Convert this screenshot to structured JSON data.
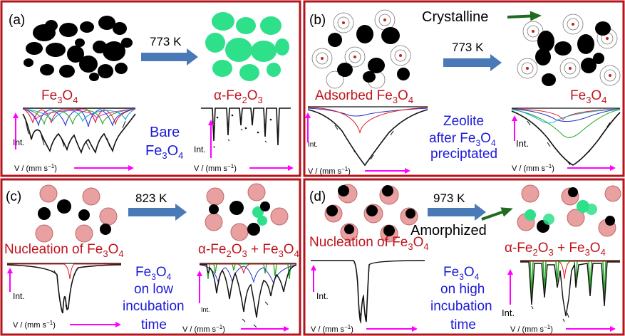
{
  "colors": {
    "panel_border": "#b3141c",
    "heading_red": "#c0141c",
    "blue_text": "#1a1ad9",
    "magenta_axis": "#ff00ff",
    "arrow_blue": "#4a79b8",
    "arrow_green": "#1f6b1f",
    "hematite_green": "#2ee08a",
    "zeolite_pink": "#e8a0a0",
    "spectrum_black": "#111111"
  },
  "panels": {
    "a": {
      "letter": "(a)",
      "temperature": "773 K",
      "left_label": {
        "base": "Fe",
        "sub1": "3",
        "mid": "O",
        "sub2": "4"
      },
      "right_label": {
        "prefix": "α-Fe",
        "sub1": "2",
        "mid": "O",
        "sub2": "3"
      },
      "note": {
        "line1": "Bare",
        "line2_base": "Fe",
        "line2_sub1": "3",
        "line2_mid": "O",
        "line2_sub2": "4"
      },
      "int_label": "Int.",
      "axis_label": {
        "text": "V / (mm s",
        "sup": "−1",
        "close": ")"
      }
    },
    "b": {
      "letter": "(b)",
      "temperature": "773 K",
      "callout": "Crystalline",
      "left_label": {
        "prefix": "Adsorbed Fe",
        "sub1": "3",
        "mid": "O",
        "sub2": "4"
      },
      "right_label": {
        "base": "Fe",
        "sub1": "3",
        "mid": "O",
        "sub2": "4"
      },
      "note": {
        "line1": "Zeolite",
        "line2_a": "after Fe",
        "line2_sub1": "3",
        "line2_mid": "O",
        "line2_sub2": "4",
        "line3": "preciptated"
      },
      "int_label": "Int.",
      "axis_label": {
        "text": "V / (mm s",
        "sup": "−1",
        "close": ")"
      }
    },
    "c": {
      "letter": "(c)",
      "temperature": "823 K",
      "left_label": {
        "prefix": "Nucleation of Fe",
        "sub1": "3",
        "mid": "O",
        "sub2": "4"
      },
      "right_label": {
        "prefix": "α-Fe",
        "sub1": "2",
        "mid": "O",
        "sub2": "3",
        "plus": " + Fe",
        "sub3": "3",
        "mid2": "O",
        "sub4": "4"
      },
      "note": {
        "line1_base": "Fe",
        "line1_sub1": "3",
        "line1_mid": "O",
        "line1_sub2": "4",
        "line2": "on low",
        "line3": "incubation",
        "line4": "time"
      },
      "int_label": "Int.",
      "axis_label": {
        "text": "V / (mm s",
        "sup": "−1",
        "close": ")"
      }
    },
    "d": {
      "letter": "(d)",
      "temperature": "973 K",
      "callout": "Amorphized",
      "left_label": {
        "prefix": "Nucleation of Fe",
        "sub1": "3",
        "mid": "O",
        "sub2": "4"
      },
      "right_label": {
        "prefix": "α-Fe",
        "sub1": "2",
        "mid": "O",
        "sub2": "3",
        "plus": " + Fe",
        "sub3": "3",
        "mid2": "O",
        "sub4": "4"
      },
      "note": {
        "line1_base": "Fe",
        "line1_sub1": "3",
        "line1_mid": "O",
        "line1_sub2": "4",
        "line2": "on high",
        "line3": "incubation",
        "line4": "time"
      },
      "int_label": "Int.",
      "axis_label": {
        "text": "V / (mm s",
        "sup": "−1",
        "close": ")"
      }
    }
  }
}
